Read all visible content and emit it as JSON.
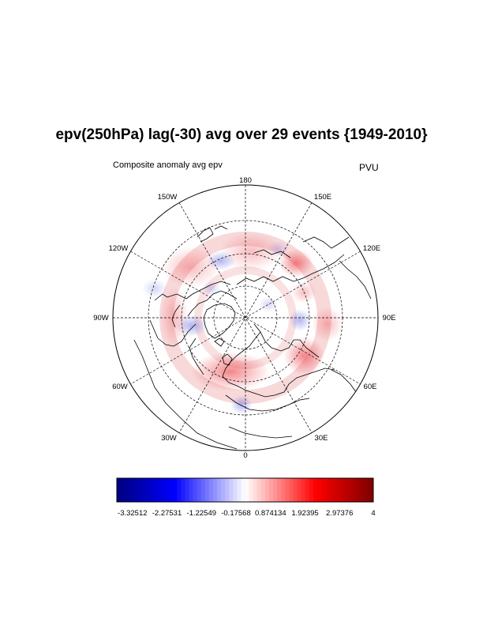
{
  "title": "epv(250hPa) lag(-30) avg over 29 events {1949-2010}",
  "left_subtitle": "Composite anomaly avg epv",
  "right_subtitle": "PVU",
  "map": {
    "projection": "north polar stereographic",
    "longitude_labels": {
      "lon_180": "180",
      "lon_150W": "150W",
      "lon_150E": "150E",
      "lon_120W": "120W",
      "lon_120E": "120E",
      "lon_90W": "90W",
      "lon_90E": "90E",
      "lon_60W": "60W",
      "lon_60E": "60E",
      "lon_30W": "30W",
      "lon_30E": "30E",
      "lon_0": "0"
    },
    "colors": {
      "positive": "#e8232a",
      "negative": "#3c46dc",
      "coast": "#000000"
    }
  },
  "colorbar": {
    "labels": [
      "-3.32512",
      "-2.27531",
      "-1.22549",
      "-0.17568",
      "0.874134",
      "1.92395",
      "2.97376",
      "4"
    ],
    "min": -3.8,
    "max": 4.0,
    "colors": {
      "low": "#00007f",
      "mid": "#ffffff",
      "high": "#7f0000"
    }
  }
}
